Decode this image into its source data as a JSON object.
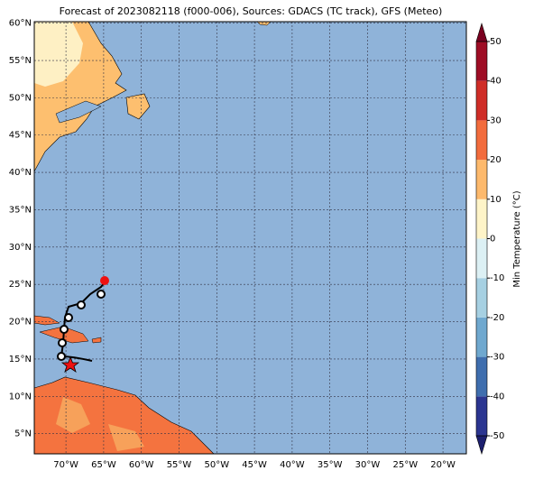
{
  "map": {
    "title": "Forecast of 2023082118 (f000-006), Sources: GDACS (TC track), GFS (Meteo)",
    "xlim": [
      -74.2,
      -16.9
    ],
    "ylim": [
      2.3,
      60.2
    ],
    "xticks": [
      {
        "value": -70,
        "label": "70°W"
      },
      {
        "value": -65,
        "label": "65°W"
      },
      {
        "value": -60,
        "label": "60°W"
      },
      {
        "value": -55,
        "label": "55°W"
      },
      {
        "value": -50,
        "label": "50°W"
      },
      {
        "value": -45,
        "label": "45°W"
      },
      {
        "value": -40,
        "label": "40°W"
      },
      {
        "value": -35,
        "label": "35°W"
      },
      {
        "value": -30,
        "label": "30°W"
      },
      {
        "value": -25,
        "label": "25°W"
      },
      {
        "value": -20,
        "label": "20°W"
      }
    ],
    "yticks": [
      {
        "value": 5,
        "label": "5°N"
      },
      {
        "value": 10,
        "label": "10°N"
      },
      {
        "value": 15,
        "label": "15°N"
      },
      {
        "value": 20,
        "label": "20°N"
      },
      {
        "value": 25,
        "label": "25°N"
      },
      {
        "value": 30,
        "label": "30°N"
      },
      {
        "value": 35,
        "label": "35°N"
      },
      {
        "value": 40,
        "label": "40°N"
      },
      {
        "value": 45,
        "label": "45°N"
      },
      {
        "value": 50,
        "label": "50°N"
      },
      {
        "value": 55,
        "label": "55°N"
      },
      {
        "value": 60,
        "label": "60°N"
      }
    ],
    "colorbar": {
      "label": "Min Temperature (°C)",
      "ticks": [
        -50,
        -40,
        -30,
        -20,
        -10,
        0,
        10,
        20,
        30,
        40,
        50
      ],
      "colors": [
        "#2b3590",
        "#3f6eae",
        "#6fa8cf",
        "#a6d0e2",
        "#dcf0f4",
        "#fef4c8",
        "#fdb96c",
        "#f26c3d",
        "#cf2d27",
        "#9e0d25"
      ],
      "extend_colors": [
        "#1c1f6e",
        "#7a0020"
      ]
    }
  }
}
